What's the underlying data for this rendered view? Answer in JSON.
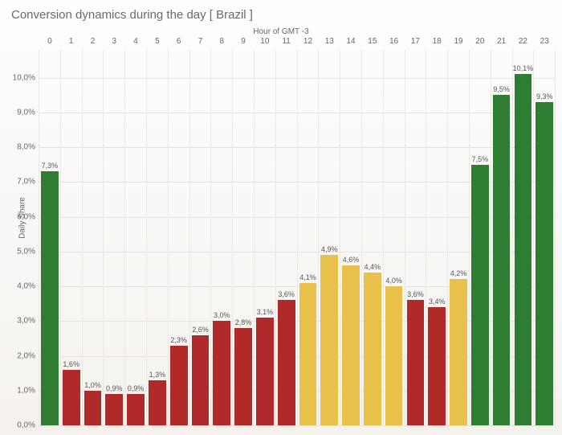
{
  "title": "Conversion dynamics during the day   [ Brazil ]",
  "xaxis_title": "Hour of GMT -3",
  "yaxis_title": "Daily Share",
  "chart": {
    "type": "bar",
    "ylim": [
      0.0,
      10.8
    ],
    "yticks": [
      "0,0%",
      "1,0%",
      "2,0%",
      "3,0%",
      "4,0%",
      "5,0%",
      "6,0%",
      "7,0%",
      "8,0%",
      "9,0%",
      "10,0%"
    ],
    "ytick_values": [
      0,
      1,
      2,
      3,
      4,
      5,
      6,
      7,
      8,
      9,
      10
    ],
    "background_color": "#faf8f5",
    "grid_color": "#e6e3de",
    "bar_width": 0.84,
    "label_fontsize": 9,
    "tick_fontsize": 10,
    "title_fontsize": 15,
    "colors": {
      "green": "#2e7d32",
      "red": "#b02a2a",
      "yellow": "#e8c14a"
    },
    "data": [
      {
        "hour": "0",
        "value": 7.3,
        "label": "7,3%",
        "color": "green"
      },
      {
        "hour": "1",
        "value": 1.6,
        "label": "1,6%",
        "color": "red"
      },
      {
        "hour": "2",
        "value": 1.0,
        "label": "1,0%",
        "color": "red"
      },
      {
        "hour": "3",
        "value": 0.9,
        "label": "0,9%",
        "color": "red"
      },
      {
        "hour": "4",
        "value": 0.9,
        "label": "0,9%",
        "color": "red"
      },
      {
        "hour": "5",
        "value": 1.3,
        "label": "1,3%",
        "color": "red"
      },
      {
        "hour": "6",
        "value": 2.3,
        "label": "2,3%",
        "color": "red"
      },
      {
        "hour": "7",
        "value": 2.6,
        "label": "2,6%",
        "color": "red"
      },
      {
        "hour": "8",
        "value": 3.0,
        "label": "3,0%",
        "color": "red"
      },
      {
        "hour": "9",
        "value": 2.8,
        "label": "2,8%",
        "color": "red"
      },
      {
        "hour": "10",
        "value": 3.1,
        "label": "3,1%",
        "color": "red"
      },
      {
        "hour": "11",
        "value": 3.6,
        "label": "3,6%",
        "color": "red"
      },
      {
        "hour": "12",
        "value": 4.1,
        "label": "4,1%",
        "color": "yellow"
      },
      {
        "hour": "13",
        "value": 4.9,
        "label": "4,9%",
        "color": "yellow"
      },
      {
        "hour": "14",
        "value": 4.6,
        "label": "4,6%",
        "color": "yellow"
      },
      {
        "hour": "15",
        "value": 4.4,
        "label": "4,4%",
        "color": "yellow"
      },
      {
        "hour": "16",
        "value": 4.0,
        "label": "4,0%",
        "color": "yellow"
      },
      {
        "hour": "17",
        "value": 3.6,
        "label": "3,6%",
        "color": "red"
      },
      {
        "hour": "18",
        "value": 3.4,
        "label": "3,4%",
        "color": "red"
      },
      {
        "hour": "19",
        "value": 4.2,
        "label": "4,2%",
        "color": "yellow"
      },
      {
        "hour": "20",
        "value": 7.5,
        "label": "7,5%",
        "color": "green"
      },
      {
        "hour": "21",
        "value": 9.5,
        "label": "9,5%",
        "color": "green"
      },
      {
        "hour": "22",
        "value": 10.1,
        "label": "10,1%",
        "color": "green"
      },
      {
        "hour": "23",
        "value": 9.3,
        "label": "9,3%",
        "color": "green"
      }
    ]
  }
}
